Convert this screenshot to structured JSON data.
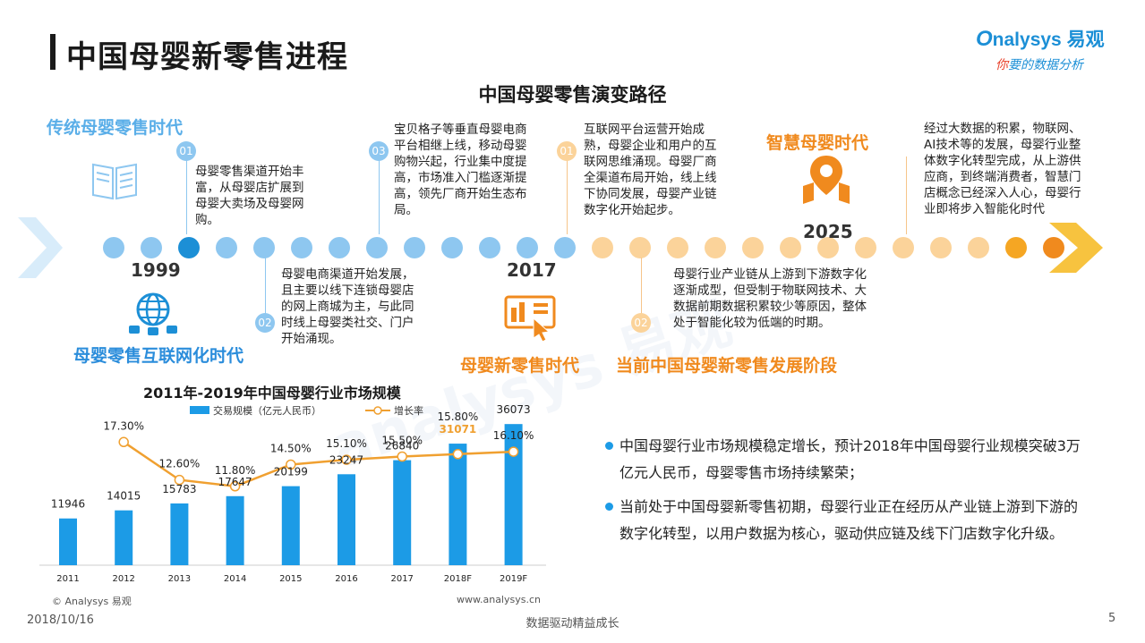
{
  "header": {
    "title": "中国母婴新零售进程",
    "logo_main": "nalysys 易观",
    "logo_o": "O",
    "logo_sub_1": "你",
    "logo_sub_2": "要的数据分析"
  },
  "timeline": {
    "title": "中国母婴零售演变路径",
    "eras": {
      "traditional": "传统母婴零售时代",
      "internet": "母婴零售互联网化时代",
      "new_retail": "母婴新零售时代",
      "current": "当前中国母婴新零售发展阶段",
      "smart": "智慧母婴时代"
    },
    "years": {
      "y1999": "1999",
      "y2017": "2017",
      "y2025": "2025"
    },
    "badges": {
      "b1": "01",
      "b2": "02",
      "b3": "03",
      "b4": "01",
      "b5": "02"
    },
    "texts": {
      "t1": "母婴零售渠道开始丰富，从母婴店扩展到母婴大卖场及母婴网购。",
      "t2": "母婴电商渠道开始发展，且主要以线下连锁母婴店的网上商城为主，与此同时线上母婴类社交、门户开始涌现。",
      "t3": "宝贝格子等垂直母婴电商平台相继上线，移动母婴购物兴起，行业集中度提高，市场准入门槛逐渐提高，领先厂商开始生态布局。",
      "t4": "互联网平台运营开始成熟，母婴企业和用户的互联网思维涌现。母婴厂商全渠道布局开始，线上线下协同发展，母婴产业链数字化开始起步。",
      "t5": "母婴行业产业链从上游到下游数字化逐渐成型，但受制于物联网技术、大数据前期数据积累较少等原因，整体处于智能化较为低端的时期。",
      "t6": "经过大数据的积累，物联网、AI技术等的发展，母婴行业整体数字化转型完成，从上游供应商，到终端消费者，智慧门店概念已经深入人心，母婴行业即将步入智能化时代"
    },
    "colors": {
      "blue": "#8ec7f0",
      "blue_dark": "#1c8fd6",
      "orange_light": "#fbd39a",
      "orange": "#f5a623",
      "orange_dark": "#f08a1e"
    }
  },
  "chart_data": {
    "type": "bar",
    "title": "2011年-2019年中国母婴行业市场规模",
    "categories": [
      "2011",
      "2012",
      "2013",
      "2014",
      "2015",
      "2016",
      "2017",
      "2018F",
      "2019F"
    ],
    "series": [
      {
        "name": "交易规模（亿元人民币）",
        "type": "bar",
        "values": [
          11946,
          14015,
          15783,
          17647,
          20199,
          23247,
          26840,
          31071,
          36073
        ],
        "color": "#1c9be6"
      },
      {
        "name": "增长率",
        "type": "line",
        "values": [
          null,
          17.3,
          12.6,
          11.8,
          14.5,
          15.1,
          15.5,
          15.8,
          16.1
        ],
        "color": "#f0a030"
      }
    ],
    "bar_labels": [
      "11946",
      "14015",
      "15783",
      "17647",
      "20199",
      "23247",
      "26840",
      "31071",
      "36073"
    ],
    "rate_labels": [
      "",
      "17.30%",
      "12.60%",
      "11.80%",
      "14.50%",
      "15.10%",
      "15.50%",
      "15.80%",
      "16.10%"
    ],
    "legend_bar": "交易规模（亿元人民币）",
    "legend_line": "增长率",
    "legend_position": "top"
  },
  "bullets": [
    "中国母婴行业市场规模稳定增长，预计2018年中国母婴行业规模突破3万亿元人民币，母婴零售市场持续繁荣；",
    "当前处于中国母婴新零售初期，母婴行业正在经历从产业链上游到下游的数字化转型，以用户数据为核心，驱动供应链及线下门店数字化升级。"
  ],
  "footer": {
    "copyright": "© Analysys 易观",
    "website": "www.analysys.cn",
    "date": "2018/10/16",
    "slogan": "数据驱动精益成长",
    "page": "5"
  }
}
